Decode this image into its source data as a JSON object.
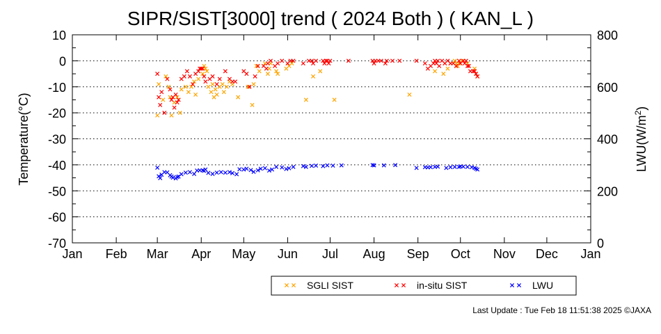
{
  "chart_data": {
    "type": "scatter",
    "title": "SIPR/SIST[3000] trend ( 2024 Both ) ( KAN_L )",
    "ylabel": "Temperature(°C)",
    "y2label_main": "LWU(W/m",
    "y2label_sup": "2",
    "y2label_end": ")",
    "xlabel": "",
    "ylim": [
      -70,
      10
    ],
    "y2lim": [
      0,
      800
    ],
    "y_ticks": [
      "10",
      "0",
      "-10",
      "-20",
      "-30",
      "-40",
      "-50",
      "-60",
      "-70"
    ],
    "y2_ticks": [
      "800",
      "600",
      "400",
      "200",
      "0"
    ],
    "months": [
      "Jan",
      "Feb",
      "Mar",
      "Apr",
      "May",
      "Jun",
      "Jul",
      "Aug",
      "Sep",
      "Oct",
      "Nov",
      "Dec",
      "Jan"
    ],
    "grid": "horizontal dotted",
    "legend_position": "bottom-right",
    "series": [
      {
        "name": "SGLI SIST",
        "axis": "left",
        "color": "#ffa500",
        "x": [
          "2024-03-01",
          "2024-03-02",
          "2024-03-05",
          "2024-03-07",
          "2024-03-09",
          "2024-03-10",
          "2024-03-11",
          "2024-03-13",
          "2024-03-15",
          "2024-03-17",
          "2024-03-18",
          "2024-03-21",
          "2024-03-23",
          "2024-03-25",
          "2024-03-27",
          "2024-03-28",
          "2024-03-30",
          "2024-04-01",
          "2024-04-02",
          "2024-04-03",
          "2024-04-04",
          "2024-04-05",
          "2024-04-06",
          "2024-04-08",
          "2024-04-09",
          "2024-04-10",
          "2024-04-11",
          "2024-04-12",
          "2024-04-14",
          "2024-04-16",
          "2024-04-17",
          "2024-04-19",
          "2024-04-21",
          "2024-04-23",
          "2024-04-27",
          "2024-05-04",
          "2024-05-07",
          "2024-05-08",
          "2024-05-10",
          "2024-05-12",
          "2024-05-16",
          "2024-05-18",
          "2024-05-19",
          "2024-05-20",
          "2024-05-24",
          "2024-05-25",
          "2024-05-31",
          "2024-06-02",
          "2024-06-04",
          "2024-06-14",
          "2024-06-19",
          "2024-06-24",
          "2024-07-04",
          "2024-08-26",
          "2024-09-13",
          "2024-09-19",
          "2024-09-20",
          "2024-09-22",
          "2024-09-24",
          "2024-09-27",
          "2024-09-28",
          "2024-09-29",
          "2024-09-30",
          "2024-10-02",
          "2024-10-06",
          "2024-10-11",
          "2024-10-12",
          "2024-10-13"
        ],
        "y": [
          -21,
          -9,
          -15,
          -6,
          -10,
          -14,
          -21,
          -16,
          -14,
          -20,
          -11,
          -10,
          -12,
          -10,
          -8,
          -13,
          -7,
          -3,
          -5,
          -2,
          -3,
          -4,
          -10,
          -12,
          -9,
          -14,
          -11,
          -13,
          -10,
          -9,
          -12,
          -10,
          -8,
          -9,
          -14,
          -10,
          -17,
          -9,
          -2,
          -4,
          -1,
          -5,
          -3,
          -1,
          -4,
          -5,
          -3,
          -2,
          -1,
          -15,
          -6,
          -4,
          -15,
          -13,
          -4,
          -5,
          -1,
          -3,
          -1,
          0,
          -1,
          -2,
          -1,
          0,
          -1,
          -3,
          -5,
          -6
        ]
      },
      {
        "name": "in-situ SIST",
        "axis": "left",
        "color": "#ff0000",
        "x": [
          "2024-03-01",
          "2024-03-02",
          "2024-03-03",
          "2024-03-04",
          "2024-03-06",
          "2024-03-08",
          "2024-03-10",
          "2024-03-11",
          "2024-03-12",
          "2024-03-13",
          "2024-03-14",
          "2024-03-15",
          "2024-03-16",
          "2024-03-18",
          "2024-03-20",
          "2024-03-22",
          "2024-03-24",
          "2024-03-26",
          "2024-03-28",
          "2024-03-30",
          "2024-03-31",
          "2024-04-01",
          "2024-04-02",
          "2024-04-03",
          "2024-04-04",
          "2024-04-07",
          "2024-04-09",
          "2024-04-12",
          "2024-04-14",
          "2024-04-18",
          "2024-04-21",
          "2024-04-23",
          "2024-04-25",
          "2024-05-01",
          "2024-05-03",
          "2024-05-05",
          "2024-05-09",
          "2024-05-11",
          "2024-05-15",
          "2024-05-17",
          "2024-05-18",
          "2024-05-20",
          "2024-05-23",
          "2024-05-25",
          "2024-05-28",
          "2024-06-01",
          "2024-06-03",
          "2024-06-05",
          "2024-06-12",
          "2024-06-16",
          "2024-06-18",
          "2024-06-19",
          "2024-06-21",
          "2024-06-26",
          "2024-06-27",
          "2024-06-28",
          "2024-06-29",
          "2024-06-30",
          "2024-07-01",
          "2024-07-14",
          "2024-07-31",
          "2024-08-01",
          "2024-08-02",
          "2024-08-04",
          "2024-08-06",
          "2024-08-09",
          "2024-08-10",
          "2024-08-14",
          "2024-08-19",
          "2024-08-31",
          "2024-09-06",
          "2024-09-08",
          "2024-09-10",
          "2024-09-12",
          "2024-09-13",
          "2024-09-14",
          "2024-09-15",
          "2024-09-16",
          "2024-09-18",
          "2024-09-20",
          "2024-09-22",
          "2024-09-24",
          "2024-09-26",
          "2024-09-28",
          "2024-09-30",
          "2024-10-01",
          "2024-10-03",
          "2024-10-04",
          "2024-10-05",
          "2024-10-06",
          "2024-10-07",
          "2024-10-08",
          "2024-10-10",
          "2024-10-11",
          "2024-10-12",
          "2024-10-13"
        ],
        "y": [
          -5,
          -14,
          -17,
          -12,
          -20,
          -7,
          -11,
          -15,
          -14,
          -18,
          -13,
          -16,
          -15,
          -7,
          -6,
          -4,
          -6,
          -9,
          -5,
          -4,
          -3,
          -3,
          -3,
          -6,
          -8,
          -7,
          -6,
          -9,
          -7,
          -4,
          -7,
          -8,
          -8,
          -4,
          -5,
          -10,
          -6,
          -2,
          -2,
          -3,
          -1,
          0,
          -2,
          -1,
          0,
          -1,
          0,
          0,
          -1,
          0,
          0,
          -1,
          0,
          0,
          -1,
          0,
          0,
          -1,
          0,
          0,
          0,
          -1,
          0,
          0,
          0,
          -1,
          0,
          0,
          0,
          0,
          -1,
          -3,
          -2,
          -1,
          0,
          -1,
          0,
          -2,
          0,
          -1,
          0,
          -1,
          -1,
          -2,
          0,
          -1,
          0,
          -1,
          0,
          -2,
          -2,
          -4,
          -4,
          -4,
          -5,
          -6
        ]
      },
      {
        "name": "LWU",
        "axis": "right",
        "color": "#0000ff",
        "x": [
          "2024-03-01",
          "2024-03-02",
          "2024-03-03",
          "2024-03-04",
          "2024-03-06",
          "2024-03-08",
          "2024-03-10",
          "2024-03-11",
          "2024-03-12",
          "2024-03-14",
          "2024-03-15",
          "2024-03-16",
          "2024-03-18",
          "2024-03-21",
          "2024-03-24",
          "2024-03-27",
          "2024-03-29",
          "2024-03-31",
          "2024-04-02",
          "2024-04-03",
          "2024-04-04",
          "2024-04-06",
          "2024-04-09",
          "2024-04-12",
          "2024-04-15",
          "2024-04-18",
          "2024-04-21",
          "2024-04-23",
          "2024-04-26",
          "2024-04-28",
          "2024-05-01",
          "2024-05-03",
          "2024-05-06",
          "2024-05-08",
          "2024-05-11",
          "2024-05-13",
          "2024-05-16",
          "2024-05-19",
          "2024-05-21",
          "2024-05-24",
          "2024-05-28",
          "2024-05-31",
          "2024-06-02",
          "2024-06-05",
          "2024-06-12",
          "2024-06-14",
          "2024-06-18",
          "2024-06-21",
          "2024-06-26",
          "2024-06-29",
          "2024-07-03",
          "2024-07-09",
          "2024-07-31",
          "2024-08-01",
          "2024-08-08",
          "2024-08-16",
          "2024-08-31",
          "2024-09-06",
          "2024-09-08",
          "2024-09-10",
          "2024-09-13",
          "2024-09-15",
          "2024-09-21",
          "2024-09-24",
          "2024-09-27",
          "2024-09-30",
          "2024-10-01",
          "2024-10-03",
          "2024-10-06",
          "2024-10-09",
          "2024-10-11",
          "2024-10-12",
          "2024-10-13"
        ],
        "y": [
          289,
          256,
          249,
          262,
          272,
          271,
          260,
          255,
          251,
          248,
          253,
          255,
          264,
          270,
          272,
          265,
          278,
          279,
          279,
          277,
          282,
          269,
          265,
          270,
          272,
          270,
          272,
          268,
          264,
          283,
          282,
          285,
          280,
          273,
          279,
          285,
          287,
          278,
          282,
          292,
          290,
          284,
          287,
          292,
          295,
          292,
          296,
          297,
          295,
          298,
          297,
          298,
          299,
          298,
          298,
          299,
          288,
          291,
          290,
          291,
          292,
          293,
          288,
          291,
          292,
          292,
          294,
          293,
          292,
          291,
          288,
          285,
          282
        ]
      }
    ]
  },
  "footer": {
    "last_update": "Last Update : Tue Feb 18 11:51:38 2025 ©JAXA"
  }
}
